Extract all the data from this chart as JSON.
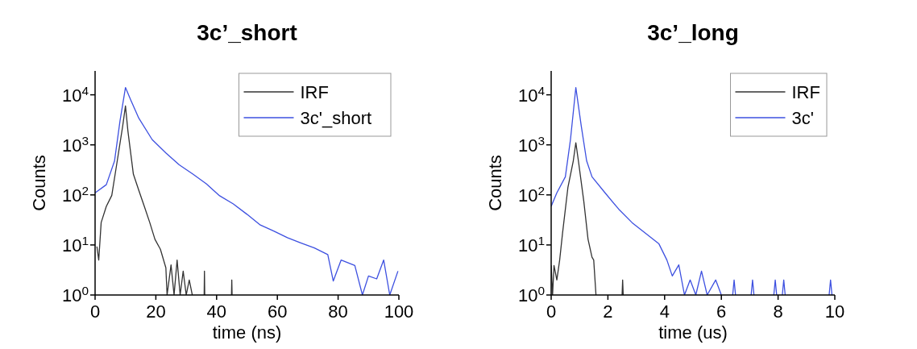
{
  "chart_data": [
    {
      "type": "line",
      "title": "3c’_short",
      "xlabel": "time (ns)",
      "ylabel": "Counts",
      "log": "y",
      "xlim": [
        0,
        100
      ],
      "xticks": [
        0,
        20,
        40,
        60,
        80,
        100
      ],
      "ylim": [
        1,
        30000
      ],
      "yticks": [
        {
          "value": 1,
          "label": "10$^{0}$"
        },
        {
          "value": 10,
          "label": "10$^{1}$"
        },
        {
          "value": 100,
          "label": "10$^{2}$"
        },
        {
          "value": 1000,
          "label": "10$^{3}$"
        },
        {
          "value": 10000,
          "label": "10$^{4}$"
        }
      ],
      "grid": false,
      "legend": "top right",
      "marker": "none",
      "line_style": "solid",
      "series": [
        {
          "name": "IRF",
          "color": "#333333",
          "x": [
            0.6,
            1.2,
            2,
            3.7,
            5.5,
            7.3,
            9.1,
            10,
            10.8,
            12.6,
            14.4,
            16.2,
            18,
            19.7,
            21.5,
            23.3,
            23.7,
            25,
            26,
            27,
            28,
            29,
            30,
            31,
            32,
            33,
            35.9,
            36,
            36.1,
            40,
            44.9,
            45,
            45.1
          ],
          "values": [
            9.3,
            5,
            28,
            59,
            98,
            480,
            2400,
            6000,
            1900,
            260,
            123,
            59,
            28,
            13,
            8.2,
            3.5,
            1,
            4,
            1,
            5,
            1,
            3,
            1,
            2,
            1,
            null,
            1,
            3,
            1,
            null,
            1,
            2,
            1
          ]
        },
        {
          "name": "3c'_short",
          "color": "#3d50e0",
          "x": [
            0,
            3.7,
            6.4,
            8.2,
            10,
            11.7,
            14.4,
            18.8,
            23.3,
            27.7,
            32.2,
            36.6,
            41,
            45.5,
            50,
            54.4,
            58.8,
            63.3,
            67.7,
            72.2,
            76.6,
            78.4,
            81,
            85.5,
            88,
            90,
            92.7,
            95,
            97,
            99.7
          ],
          "values": [
            110,
            160,
            475,
            3000,
            14000,
            8000,
            3400,
            1270,
            690,
            400,
            260,
            167,
            96,
            66,
            41,
            25,
            19,
            14,
            11,
            8.7,
            6.4,
            1.9,
            5,
            3.9,
            1,
            2.4,
            2.1,
            5,
            1,
            3
          ]
        }
      ]
    },
    {
      "type": "line",
      "title": "3c’_long",
      "xlabel": "time (us)",
      "ylabel": "Counts",
      "log": "y",
      "xlim": [
        0,
        10
      ],
      "xticks": [
        0,
        2,
        4,
        6,
        8,
        10
      ],
      "ylim": [
        1,
        30000
      ],
      "yticks": [
        {
          "value": 1,
          "label": "10$^{0}$"
        },
        {
          "value": 10,
          "label": "10$^{1}$"
        },
        {
          "value": 100,
          "label": "10$^{2}$"
        },
        {
          "value": 1000,
          "label": "10$^{3}$"
        },
        {
          "value": 10000,
          "label": "10$^{4}$"
        }
      ],
      "grid": false,
      "legend": "top right",
      "marker": "none",
      "line_style": "solid",
      "series": [
        {
          "name": "IRF",
          "color": "#333333",
          "x": [
            0,
            0.05,
            0.1,
            0.2,
            0.3,
            0.4,
            0.59,
            0.78,
            0.87,
            0.96,
            1.15,
            1.3,
            1.44,
            1.5,
            1.58,
            2,
            2.5,
            2.52,
            2.54
          ],
          "values": [
            3.9,
            1,
            3.9,
            2,
            5,
            17,
            140,
            480,
            1100,
            480,
            75,
            13,
            5.7,
            5,
            1,
            null,
            1,
            2,
            1
          ]
        },
        {
          "name": "3c'",
          "color": "#3d50e0",
          "x": [
            0,
            0.2,
            0.5,
            0.68,
            0.87,
            1.06,
            1.25,
            1.44,
            1.9,
            2.38,
            2.85,
            3.33,
            3.8,
            4.08,
            4.27,
            4.5,
            4.7,
            4.9,
            5.1,
            5.3,
            5.5,
            5.8,
            6.0,
            6.2,
            6.4,
            6.45,
            6.5,
            6.7,
            7.05,
            7.1,
            7.15,
            7.5,
            7.85,
            7.9,
            7.95,
            8.1,
            8.15,
            8.2,
            8.25,
            8.3,
            9.8,
            9.85,
            9.9
          ],
          "values": [
            59,
            110,
            230,
            1270,
            14000,
            2400,
            480,
            230,
            110,
            52,
            28,
            17,
            10.5,
            5,
            2.4,
            4,
            1,
            2,
            1,
            3,
            1,
            2,
            1,
            null,
            1,
            2,
            1,
            null,
            1,
            2,
            1,
            null,
            1,
            2,
            1,
            null,
            1,
            2,
            1,
            null,
            1,
            2,
            1
          ]
        }
      ]
    }
  ]
}
